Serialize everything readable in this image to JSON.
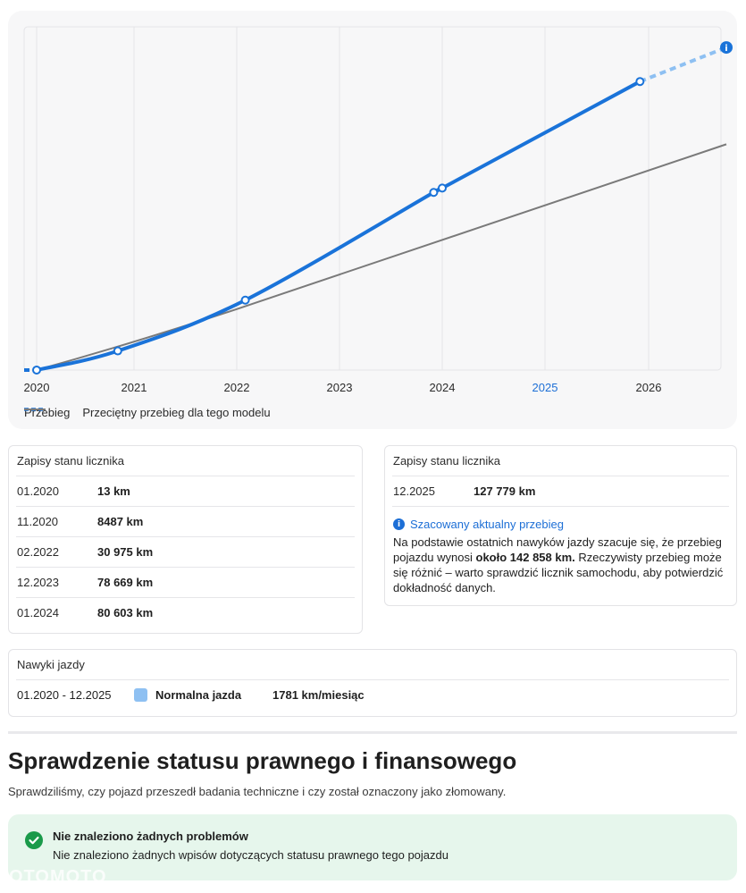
{
  "chart_data": {
    "type": "line",
    "x_ticks": [
      "2020",
      "2021",
      "2022",
      "2023",
      "2024",
      "2025",
      "2026"
    ],
    "highlight_tick": "2025",
    "series": [
      {
        "name": "Przebieg",
        "color": "#1a73d9",
        "style": "solid-with-dashed-estimate",
        "points": [
          {
            "x": "01.2020",
            "y": 13
          },
          {
            "x": "11.2020",
            "y": 8487
          },
          {
            "x": "02.2022",
            "y": 30975
          },
          {
            "x": "12.2023",
            "y": 78669
          },
          {
            "x": "01.2024",
            "y": 80603
          },
          {
            "x": "12.2025",
            "y": 127779
          }
        ],
        "estimate": {
          "x": "2026-10",
          "y": 142858
        }
      },
      {
        "name": "Przeciętny przebieg dla tego modelu",
        "color": "#7a7a7a",
        "points": [
          {
            "x": "2020-01",
            "y": 0
          },
          {
            "x": "2026-10",
            "y": 100000
          }
        ]
      }
    ],
    "ylim": [
      0,
      152000
    ],
    "grid": "vertical"
  },
  "legend": {
    "series1": "Przebieg",
    "series2": "Przeciętny przebieg dla tego modelu"
  },
  "records_left": {
    "title": "Zapisy stanu licznika",
    "rows": [
      {
        "date": "01.2020",
        "value": "13 km"
      },
      {
        "date": "11.2020",
        "value": "8487 km"
      },
      {
        "date": "02.2022",
        "value": "30 975 km"
      },
      {
        "date": "12.2023",
        "value": "78 669 km"
      },
      {
        "date": "01.2024",
        "value": "80 603 km"
      }
    ]
  },
  "records_right": {
    "title": "Zapisy stanu licznika",
    "rows": [
      {
        "date": "12.2025",
        "value": "127 779 km"
      }
    ],
    "estimate_title": "Szacowany aktualny przebieg",
    "estimate_text_1": "Na podstawie ostatnich nawyków jazdy szacuje się, że przebieg pojazdu wynosi ",
    "estimate_bold": "około 142 858 km.",
    "estimate_text_2": " Rzeczywisty przebieg może się różnić – warto sprawdzić licznik samochodu, aby potwierdzić dokładność danych."
  },
  "habits": {
    "title": "Nawyki jazdy",
    "period": "01.2020 - 12.2025",
    "type": "Normalna jazda",
    "rate": "1781 km/miesiąc",
    "swatch_color": "#8ec0f2"
  },
  "legal": {
    "heading": "Sprawdzenie statusu prawnego i finansowego",
    "subtitle": "Sprawdziliśmy, czy pojazd przeszedł badania techniczne i czy został oznaczony jako złomowany.",
    "ok_title": "Nie znaleziono żadnych problemów",
    "ok_text": "Nie znaleziono żadnych wpisów dotyczących statusu prawnego tego pojazdu"
  },
  "watermark": "OTOMOTO",
  "colors": {
    "accent": "#1a73d9",
    "success": "#1a9a4a",
    "success_bg": "#e6f6ec"
  }
}
